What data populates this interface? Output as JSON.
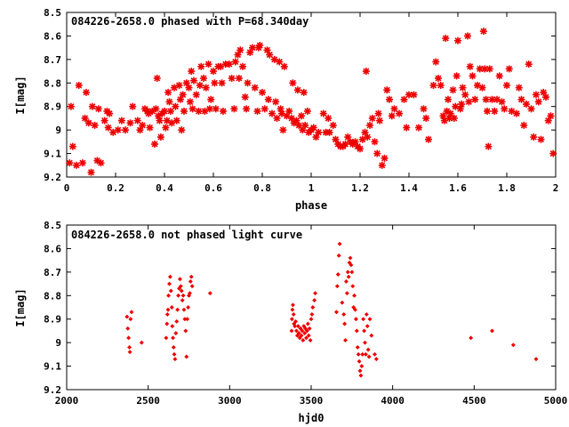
{
  "chart_data": [
    {
      "type": "scatter",
      "title": "084226-2658.0 phased with P=68.340day",
      "xlabel": "phase",
      "ylabel": "I[mag]",
      "xlim": [
        0,
        2
      ],
      "ylim": [
        9.2,
        8.5
      ],
      "y_inverted": true,
      "xticks": [
        "0",
        "0.2",
        "0.4",
        "0.6",
        "0.8",
        "1",
        "1.2",
        "1.4",
        "1.6",
        "1.8",
        "2"
      ],
      "yticks": [
        "8.5",
        "8.6",
        "8.7",
        "8.8",
        "8.9",
        "9",
        "9.1",
        "9.2"
      ],
      "marker": "star",
      "color": "#ee0000",
      "grid": false,
      "points": [
        [
          0.012,
          9.14
        ],
        [
          0.018,
          8.9
        ],
        [
          0.025,
          9.07
        ],
        [
          0.04,
          9.15
        ],
        [
          0.05,
          8.81
        ],
        [
          0.065,
          9.14
        ],
        [
          0.075,
          8.95
        ],
        [
          0.08,
          8.84
        ],
        [
          0.09,
          8.97
        ],
        [
          0.1,
          9.18
        ],
        [
          0.105,
          8.9
        ],
        [
          0.115,
          8.98
        ],
        [
          0.125,
          9.13
        ],
        [
          0.13,
          8.91
        ],
        [
          0.14,
          9.14
        ],
        [
          0.155,
          8.96
        ],
        [
          0.165,
          8.92
        ],
        [
          0.17,
          8.99
        ],
        [
          0.175,
          8.93
        ],
        [
          0.19,
          9.01
        ],
        [
          0.21,
          9.0
        ],
        [
          0.225,
          8.96
        ],
        [
          0.24,
          9.0
        ],
        [
          0.26,
          8.97
        ],
        [
          0.27,
          8.9
        ],
        [
          0.29,
          8.96
        ],
        [
          0.3,
          9.0
        ],
        [
          0.31,
          8.98
        ],
        [
          0.32,
          8.91
        ],
        [
          0.33,
          8.92
        ],
        [
          0.335,
          8.93
        ],
        [
          0.34,
          8.99
        ],
        [
          0.35,
          8.92
        ],
        [
          0.36,
          9.06
        ],
        [
          0.365,
          8.91
        ],
        [
          0.37,
          8.78
        ],
        [
          0.375,
          8.94
        ],
        [
          0.38,
          8.96
        ],
        [
          0.385,
          9.03
        ],
        [
          0.39,
          8.93
        ],
        [
          0.4,
          8.92
        ],
        [
          0.405,
          8.99
        ],
        [
          0.41,
          8.96
        ],
        [
          0.415,
          8.84
        ],
        [
          0.42,
          8.88
        ],
        [
          0.425,
          8.92
        ],
        [
          0.43,
          8.97
        ],
        [
          0.44,
          8.82
        ],
        [
          0.445,
          8.9
        ],
        [
          0.45,
          8.96
        ],
        [
          0.46,
          8.81
        ],
        [
          0.465,
          8.87
        ],
        [
          0.47,
          9.0
        ],
        [
          0.475,
          8.85
        ],
        [
          0.48,
          8.92
        ],
        [
          0.49,
          8.8
        ],
        [
          0.5,
          8.82
        ],
        [
          0.505,
          8.88
        ],
        [
          0.51,
          8.75
        ],
        [
          0.515,
          8.91
        ],
        [
          0.52,
          8.79
        ],
        [
          0.53,
          8.85
        ],
        [
          0.54,
          8.92
        ],
        [
          0.545,
          8.81
        ],
        [
          0.55,
          8.73
        ],
        [
          0.56,
          8.78
        ],
        [
          0.565,
          8.92
        ],
        [
          0.57,
          8.82
        ],
        [
          0.58,
          8.72
        ],
        [
          0.585,
          8.91
        ],
        [
          0.59,
          8.87
        ],
        [
          0.6,
          8.75
        ],
        [
          0.605,
          8.8
        ],
        [
          0.61,
          8.91
        ],
        [
          0.62,
          8.73
        ],
        [
          0.63,
          8.73
        ],
        [
          0.635,
          8.8
        ],
        [
          0.64,
          8.92
        ],
        [
          0.65,
          8.72
        ],
        [
          0.665,
          8.72
        ],
        [
          0.675,
          8.78
        ],
        [
          0.685,
          8.91
        ],
        [
          0.69,
          8.71
        ],
        [
          0.7,
          8.68
        ],
        [
          0.705,
          8.78
        ],
        [
          0.71,
          8.66
        ],
        [
          0.72,
          8.73
        ],
        [
          0.73,
          8.86
        ],
        [
          0.735,
          8.91
        ],
        [
          0.74,
          8.8
        ],
        [
          0.75,
          8.67
        ],
        [
          0.76,
          8.65
        ],
        [
          0.77,
          8.82
        ],
        [
          0.78,
          8.92
        ],
        [
          0.785,
          8.65
        ],
        [
          0.79,
          8.64
        ],
        [
          0.8,
          8.84
        ],
        [
          0.81,
          8.91
        ],
        [
          0.82,
          8.66
        ],
        [
          0.825,
          8.87
        ],
        [
          0.83,
          8.68
        ],
        [
          0.84,
          8.93
        ],
        [
          0.85,
          8.7
        ],
        [
          0.855,
          8.88
        ],
        [
          0.86,
          8.95
        ],
        [
          0.87,
          8.71
        ],
        [
          0.875,
          8.91
        ],
        [
          0.88,
          8.93
        ],
        [
          0.885,
          9.0
        ],
        [
          0.89,
          8.73
        ],
        [
          0.9,
          8.94
        ],
        [
          0.91,
          8.92
        ],
        [
          0.92,
          8.95
        ],
        [
          0.925,
          8.8
        ],
        [
          0.93,
          8.97
        ],
        [
          0.94,
          8.96
        ],
        [
          0.945,
          8.83
        ],
        [
          0.95,
          8.98
        ],
        [
          0.96,
          8.94
        ],
        [
          0.965,
          9.0
        ],
        [
          0.97,
          8.84
        ],
        [
          0.975,
          8.98
        ],
        [
          0.985,
          8.92
        ],
        [
          0.99,
          9.01
        ],
        [
          1.0,
          9.0
        ],
        [
          1.01,
          8.99
        ],
        [
          1.02,
          9.03
        ],
        [
          1.03,
          9.01
        ],
        [
          1.05,
          8.93
        ],
        [
          1.06,
          9.01
        ],
        [
          1.07,
          8.95
        ],
        [
          1.075,
          9.01
        ],
        [
          1.09,
          8.98
        ],
        [
          1.1,
          9.04
        ],
        [
          1.11,
          9.06
        ],
        [
          1.12,
          9.07
        ],
        [
          1.13,
          9.07
        ],
        [
          1.14,
          9.06
        ],
        [
          1.15,
          9.03
        ],
        [
          1.16,
          9.05
        ],
        [
          1.17,
          9.06
        ],
        [
          1.18,
          9.05
        ],
        [
          1.19,
          9.07
        ],
        [
          1.2,
          9.08
        ],
        [
          1.21,
          9.04
        ],
        [
          1.22,
          9.01
        ],
        [
          1.225,
          8.75
        ],
        [
          1.23,
          9.03
        ],
        [
          1.24,
          8.98
        ],
        [
          1.25,
          8.95
        ],
        [
          1.26,
          9.05
        ],
        [
          1.27,
          9.1
        ],
        [
          1.275,
          8.93
        ],
        [
          1.28,
          8.96
        ],
        [
          1.29,
          9.15
        ],
        [
          1.3,
          9.12
        ],
        [
          1.31,
          8.83
        ],
        [
          1.32,
          8.87
        ],
        [
          1.33,
          8.94
        ],
        [
          1.34,
          8.91
        ],
        [
          1.36,
          8.93
        ],
        [
          1.38,
          8.87
        ],
        [
          1.39,
          8.99
        ],
        [
          1.4,
          8.85
        ],
        [
          1.42,
          8.85
        ],
        [
          1.44,
          8.99
        ],
        [
          1.46,
          8.91
        ],
        [
          1.47,
          8.95
        ],
        [
          1.48,
          9.04
        ],
        [
          1.5,
          8.81
        ],
        [
          1.51,
          8.71
        ],
        [
          1.52,
          8.78
        ],
        [
          1.53,
          8.81
        ],
        [
          1.54,
          8.94
        ],
        [
          1.545,
          8.96
        ],
        [
          1.55,
          8.61
        ],
        [
          1.555,
          8.92
        ],
        [
          1.56,
          8.87
        ],
        [
          1.565,
          8.95
        ],
        [
          1.57,
          8.93
        ],
        [
          1.58,
          8.83
        ],
        [
          1.585,
          8.95
        ],
        [
          1.59,
          8.9
        ],
        [
          1.595,
          8.77
        ],
        [
          1.6,
          8.62
        ],
        [
          1.61,
          8.91
        ],
        [
          1.615,
          8.89
        ],
        [
          1.62,
          8.82
        ],
        [
          1.63,
          8.85
        ],
        [
          1.64,
          8.6
        ],
        [
          1.645,
          8.88
        ],
        [
          1.65,
          8.73
        ],
        [
          1.66,
          8.77
        ],
        [
          1.67,
          8.87
        ],
        [
          1.68,
          8.81
        ],
        [
          1.69,
          8.74
        ],
        [
          1.7,
          8.82
        ],
        [
          1.705,
          8.58
        ],
        [
          1.71,
          8.74
        ],
        [
          1.715,
          8.87
        ],
        [
          1.72,
          8.92
        ],
        [
          1.725,
          9.07
        ],
        [
          1.73,
          8.74
        ],
        [
          1.74,
          8.87
        ],
        [
          1.75,
          8.92
        ],
        [
          1.76,
          8.87
        ],
        [
          1.77,
          8.77
        ],
        [
          1.78,
          8.88
        ],
        [
          1.79,
          8.91
        ],
        [
          1.8,
          8.81
        ],
        [
          1.81,
          8.74
        ],
        [
          1.82,
          8.92
        ],
        [
          1.84,
          8.93
        ],
        [
          1.85,
          8.82
        ],
        [
          1.86,
          8.87
        ],
        [
          1.87,
          8.98
        ],
        [
          1.88,
          8.89
        ],
        [
          1.89,
          8.72
        ],
        [
          1.9,
          8.91
        ],
        [
          1.91,
          9.03
        ],
        [
          1.92,
          8.85
        ],
        [
          1.93,
          8.88
        ],
        [
          1.94,
          9.04
        ],
        [
          1.95,
          8.84
        ],
        [
          1.96,
          8.86
        ],
        [
          1.97,
          8.96
        ],
        [
          1.98,
          8.94
        ],
        [
          1.99,
          9.1
        ]
      ]
    },
    {
      "type": "scatter",
      "title": "084226-2658.0 not phased light curve",
      "xlabel": "hjd0",
      "ylabel": "I[mag]",
      "xlim": [
        2000,
        5000
      ],
      "ylim": [
        9.2,
        8.5
      ],
      "y_inverted": true,
      "xticks": [
        "2000",
        "2500",
        "3000",
        "3500",
        "4000",
        "4500",
        "5000"
      ],
      "yticks": [
        "8.5",
        "8.6",
        "8.7",
        "8.8",
        "8.9",
        "9",
        "9.1",
        "9.2"
      ],
      "marker": "diamond",
      "color": "#ee0000",
      "grid": false,
      "points": [
        [
          2370,
          8.89
        ],
        [
          2375,
          8.94
        ],
        [
          2380,
          8.98
        ],
        [
          2385,
          9.02
        ],
        [
          2388,
          9.04
        ],
        [
          2392,
          8.9
        ],
        [
          2398,
          8.87
        ],
        [
          2460,
          9.0
        ],
        [
          2610,
          8.98
        ],
        [
          2615,
          8.92
        ],
        [
          2618,
          8.88
        ],
        [
          2622,
          8.86
        ],
        [
          2625,
          8.8
        ],
        [
          2630,
          8.75
        ],
        [
          2635,
          8.72
        ],
        [
          2640,
          8.78
        ],
        [
          2645,
          8.85
        ],
        [
          2648,
          8.93
        ],
        [
          2652,
          8.98
        ],
        [
          2656,
          9.02
        ],
        [
          2660,
          9.05
        ],
        [
          2665,
          9.07
        ],
        [
          2670,
          8.96
        ],
        [
          2675,
          8.91
        ],
        [
          2680,
          8.86
        ],
        [
          2685,
          8.8
        ],
        [
          2690,
          8.77
        ],
        [
          2695,
          8.73
        ],
        [
          2700,
          8.76
        ],
        [
          2705,
          8.78
        ],
        [
          2710,
          8.82
        ],
        [
          2715,
          8.8
        ],
        [
          2720,
          8.86
        ],
        [
          2725,
          8.9
        ],
        [
          2730,
          8.95
        ],
        [
          2735,
          9.06
        ],
        [
          2740,
          8.9
        ],
        [
          2745,
          8.85
        ],
        [
          2750,
          8.8
        ],
        [
          2755,
          8.79
        ],
        [
          2760,
          8.74
        ],
        [
          2765,
          8.72
        ],
        [
          2770,
          8.76
        ],
        [
          2880,
          8.79
        ],
        [
          3380,
          8.95
        ],
        [
          3382,
          8.9
        ],
        [
          3385,
          8.86
        ],
        [
          3388,
          8.84
        ],
        [
          3392,
          8.88
        ],
        [
          3395,
          8.92
        ],
        [
          3400,
          8.93
        ],
        [
          3405,
          8.91
        ],
        [
          3410,
          8.95
        ],
        [
          3415,
          8.97
        ],
        [
          3420,
          8.93
        ],
        [
          3425,
          8.96
        ],
        [
          3430,
          8.98
        ],
        [
          3435,
          8.94
        ],
        [
          3440,
          8.97
        ],
        [
          3445,
          8.95
        ],
        [
          3450,
          8.99
        ],
        [
          3455,
          8.93
        ],
        [
          3460,
          8.96
        ],
        [
          3465,
          8.94
        ],
        [
          3470,
          8.98
        ],
        [
          3475,
          8.95
        ],
        [
          3480,
          8.92
        ],
        [
          3485,
          8.97
        ],
        [
          3490,
          8.94
        ],
        [
          3495,
          8.99
        ],
        [
          3500,
          8.9
        ],
        [
          3505,
          8.88
        ],
        [
          3510,
          8.85
        ],
        [
          3520,
          8.82
        ],
        [
          3525,
          8.79
        ],
        [
          3655,
          8.87
        ],
        [
          3660,
          8.76
        ],
        [
          3665,
          8.71
        ],
        [
          3670,
          8.63
        ],
        [
          3675,
          8.58
        ],
        [
          3690,
          8.83
        ],
        [
          3700,
          8.88
        ],
        [
          3705,
          8.92
        ],
        [
          3710,
          8.99
        ],
        [
          3715,
          8.74
        ],
        [
          3720,
          8.79
        ],
        [
          3725,
          8.7
        ],
        [
          3730,
          8.72
        ],
        [
          3735,
          8.66
        ],
        [
          3740,
          8.64
        ],
        [
          3745,
          8.67
        ],
        [
          3750,
          8.7
        ],
        [
          3755,
          8.76
        ],
        [
          3760,
          8.85
        ],
        [
          3765,
          8.8
        ],
        [
          3770,
          8.86
        ],
        [
          3775,
          8.9
        ],
        [
          3780,
          8.95
        ],
        [
          3785,
          9.02
        ],
        [
          3790,
          9.05
        ],
        [
          3795,
          9.08
        ],
        [
          3800,
          9.12
        ],
        [
          3805,
          9.14
        ],
        [
          3810,
          9.1
        ],
        [
          3815,
          9.05
        ],
        [
          3820,
          8.9
        ],
        [
          3825,
          8.95
        ],
        [
          3830,
          9.0
        ],
        [
          3835,
          9.05
        ],
        [
          3840,
          8.88
        ],
        [
          3845,
          8.93
        ],
        [
          3850,
          9.03
        ],
        [
          3855,
          9.06
        ],
        [
          3860,
          8.9
        ],
        [
          3870,
          8.97
        ],
        [
          3890,
          9.05
        ],
        [
          3900,
          9.07
        ],
        [
          4480,
          8.98
        ],
        [
          4610,
          8.95
        ],
        [
          4740,
          9.01
        ],
        [
          4880,
          9.07
        ]
      ]
    }
  ]
}
